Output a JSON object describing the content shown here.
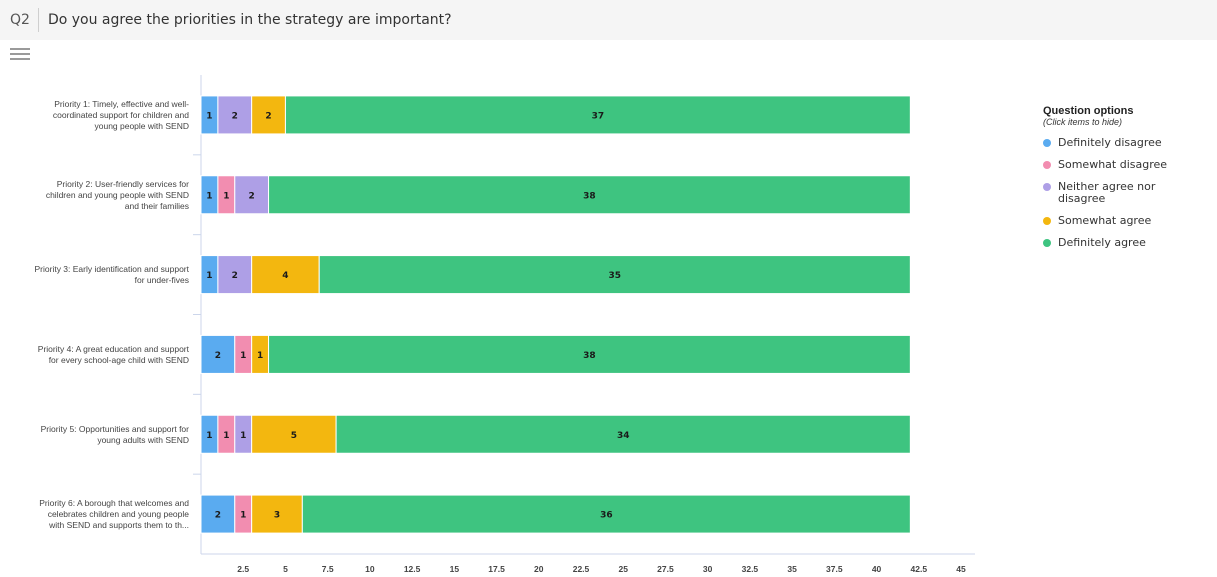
{
  "question": {
    "number": "Q2",
    "title": "Do you agree the priorities in the strategy are important?"
  },
  "menu_icon": "hamburger-menu-icon",
  "legend": {
    "title": "Question options",
    "subtitle": "(Click items to hide)",
    "items": [
      {
        "label": "Definitely disagree",
        "color": "#5aabf0"
      },
      {
        "label": "Somewhat disagree",
        "color": "#f28db0"
      },
      {
        "label": "Neither agree nor disagree",
        "color": "#ae9fe6"
      },
      {
        "label": "Somewhat agree",
        "color": "#f3b70f"
      },
      {
        "label": "Definitely agree",
        "color": "#3ec480"
      }
    ]
  },
  "chart_data": {
    "type": "bar",
    "orientation": "horizontal",
    "stacked": true,
    "categories": [
      [
        "Priority 1: Timely, effective and well-",
        "coordinated support for children and",
        "young people with SEND"
      ],
      [
        "Priority 2: User-friendly services for",
        "children and young people with SEND",
        "and their families"
      ],
      [
        "Priority 3: Early identification and support",
        "for under-fives"
      ],
      [
        "Priority 4: A great education and support",
        "for every school-age child with SEND"
      ],
      [
        "Priority 5: Opportunities and support for",
        "young adults with SEND"
      ],
      [
        "Priority 6: A borough that welcomes and",
        "celebrates children and young people",
        "with SEND and supports them to th..."
      ]
    ],
    "series": [
      {
        "name": "Definitely disagree",
        "color": "#5aabf0",
        "values": [
          1,
          1,
          1,
          2,
          1,
          2
        ]
      },
      {
        "name": "Somewhat disagree",
        "color": "#f28db0",
        "values": [
          0,
          1,
          0,
          1,
          1,
          1
        ]
      },
      {
        "name": "Neither agree nor disagree",
        "color": "#ae9fe6",
        "values": [
          2,
          2,
          2,
          0,
          1,
          0
        ]
      },
      {
        "name": "Somewhat agree",
        "color": "#f3b70f",
        "values": [
          2,
          0,
          4,
          1,
          5,
          3
        ]
      },
      {
        "name": "Definitely agree",
        "color": "#3ec480",
        "values": [
          37,
          38,
          35,
          38,
          34,
          36
        ]
      }
    ],
    "xlim": [
      0,
      45
    ],
    "xticks": [
      "2.5",
      "5",
      "7.5",
      "10",
      "12.5",
      "15",
      "17.5",
      "20",
      "22.5",
      "25",
      "27.5",
      "30",
      "32.5",
      "35",
      "37.5",
      "40",
      "42.5",
      "45"
    ],
    "title": "",
    "xlabel": "",
    "ylabel": "",
    "legend_position": "right"
  }
}
